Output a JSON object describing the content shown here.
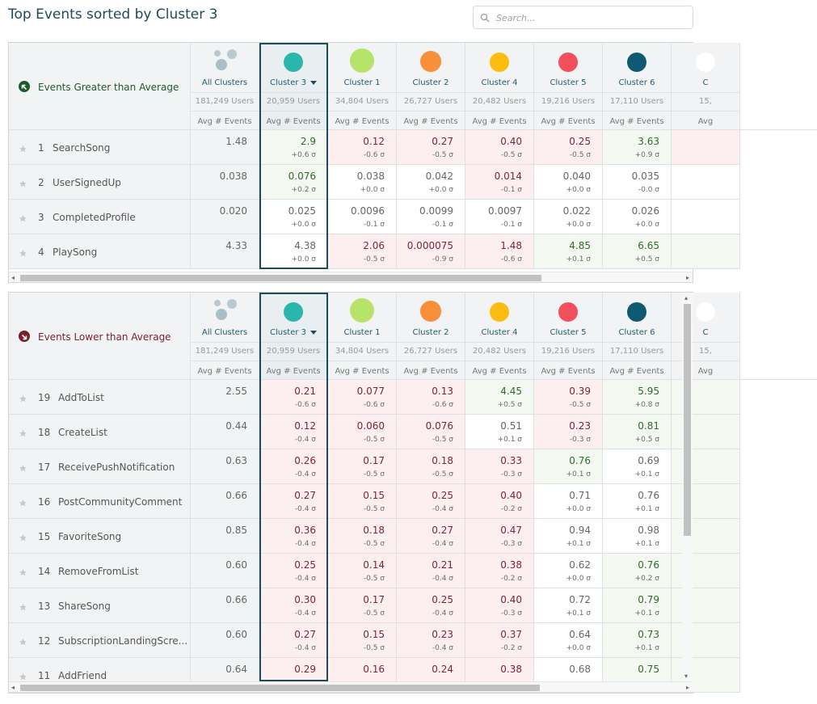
{
  "page": {
    "title": "Top Events sorted by Cluster 3"
  },
  "search": {
    "placeholder": "Search..."
  },
  "colors": {
    "accent": "#1d4b5a",
    "positive_bg": "#f3f9f0",
    "negative_bg": "#fdeff0"
  },
  "columns": [
    {
      "name": "All Clusters",
      "users": "181,249 Users",
      "metric": "Avg # Events",
      "icon": "all-clusters-icon"
    },
    {
      "name": "Cluster 3",
      "users": "20,959 Users",
      "metric": "Avg # Events",
      "color": "#2ab5ad",
      "selected": true
    },
    {
      "name": "Cluster 1",
      "users": "34,804 Users",
      "metric": "Avg # Events",
      "color": "#b6e36a"
    },
    {
      "name": "Cluster 2",
      "users": "26,727 Users",
      "metric": "Avg # Events",
      "color": "#f88f39"
    },
    {
      "name": "Cluster 4",
      "users": "20,482 Users",
      "metric": "Avg # Events",
      "color": "#fcbd10"
    },
    {
      "name": "Cluster 5",
      "users": "19,216 Users",
      "metric": "Avg # Events",
      "color": "#f04f5b"
    },
    {
      "name": "Cluster 6",
      "users": "17,110 Users",
      "metric": "Avg # Events",
      "color": "#0d5a72"
    },
    {
      "name": "C",
      "users": "15,",
      "metric": "Avg",
      "color": "#ffffff"
    }
  ],
  "greater": {
    "label": "Events Greater than Average",
    "rows": [
      {
        "rank": "1",
        "event": "SearchSong",
        "all": "1.48",
        "cells": [
          {
            "v": "2.9",
            "s": "+0.6 σ",
            "t": "pos"
          },
          {
            "v": "0.12",
            "s": "-0.6 σ",
            "t": "neg"
          },
          {
            "v": "0.27",
            "s": "-0.5 σ",
            "t": "neg"
          },
          {
            "v": "0.40",
            "s": "-0.5 σ",
            "t": "neg"
          },
          {
            "v": "0.25",
            "s": "-0.5 σ",
            "t": "neg"
          },
          {
            "v": "3.63",
            "s": "+0.9 σ",
            "t": "pos"
          },
          {
            "v": "",
            "s": "",
            "t": "neg"
          }
        ]
      },
      {
        "rank": "2",
        "event": "UserSignedUp",
        "all": "0.038",
        "cells": [
          {
            "v": "0.076",
            "s": "+0.2 σ",
            "t": "pos"
          },
          {
            "v": "0.038",
            "s": "+0.0 σ",
            "t": "neu"
          },
          {
            "v": "0.042",
            "s": "+0.0 σ",
            "t": "neu"
          },
          {
            "v": "0.014",
            "s": "-0.1 σ",
            "t": "neg"
          },
          {
            "v": "0.040",
            "s": "+0.0 σ",
            "t": "neu"
          },
          {
            "v": "0.035",
            "s": "-0.0 σ",
            "t": "neu"
          },
          {
            "v": "",
            "s": "",
            "t": "neu"
          }
        ]
      },
      {
        "rank": "3",
        "event": "CompletedProfile",
        "all": "0.020",
        "cells": [
          {
            "v": "0.025",
            "s": "+0.0 σ",
            "t": "neu"
          },
          {
            "v": "0.0096",
            "s": "-0.1 σ",
            "t": "neu"
          },
          {
            "v": "0.0099",
            "s": "-0.1 σ",
            "t": "neu"
          },
          {
            "v": "0.0097",
            "s": "-0.1 σ",
            "t": "neu"
          },
          {
            "v": "0.022",
            "s": "+0.0 σ",
            "t": "neu"
          },
          {
            "v": "0.026",
            "s": "+0.0 σ",
            "t": "neu"
          },
          {
            "v": "",
            "s": "",
            "t": "neu"
          }
        ]
      },
      {
        "rank": "4",
        "event": "PlaySong",
        "all": "4.33",
        "cells": [
          {
            "v": "4.38",
            "s": "+0.0 σ",
            "t": "neu"
          },
          {
            "v": "2.06",
            "s": "-0.5 σ",
            "t": "neg"
          },
          {
            "v": "0.000075",
            "s": "-0.9 σ",
            "t": "neg"
          },
          {
            "v": "1.48",
            "s": "-0.6 σ",
            "t": "neg"
          },
          {
            "v": "4.85",
            "s": "+0.1 σ",
            "t": "pos"
          },
          {
            "v": "6.65",
            "s": "+0.5 σ",
            "t": "pos"
          },
          {
            "v": "",
            "s": "",
            "t": "pos"
          }
        ]
      }
    ]
  },
  "lower": {
    "label": "Events Lower than Average",
    "rows": [
      {
        "rank": "19",
        "event": "AddToList",
        "all": "2.55",
        "cells": [
          {
            "v": "0.21",
            "s": "-0.6 σ",
            "t": "neg"
          },
          {
            "v": "0.077",
            "s": "-0.6 σ",
            "t": "neg"
          },
          {
            "v": "0.13",
            "s": "-0.6 σ",
            "t": "neg"
          },
          {
            "v": "4.45",
            "s": "+0.5 σ",
            "t": "pos"
          },
          {
            "v": "0.39",
            "s": "-0.5 σ",
            "t": "neg"
          },
          {
            "v": "5.95",
            "s": "+0.8 σ",
            "t": "pos"
          },
          {
            "v": "",
            "s": "",
            "t": "pos"
          }
        ]
      },
      {
        "rank": "18",
        "event": "CreateList",
        "all": "0.44",
        "cells": [
          {
            "v": "0.12",
            "s": "-0.4 σ",
            "t": "neg"
          },
          {
            "v": "0.060",
            "s": "-0.5 σ",
            "t": "neg"
          },
          {
            "v": "0.076",
            "s": "-0.5 σ",
            "t": "neg"
          },
          {
            "v": "0.51",
            "s": "+0.1 σ",
            "t": "neu"
          },
          {
            "v": "0.23",
            "s": "-0.3 σ",
            "t": "neg"
          },
          {
            "v": "0.81",
            "s": "+0.5 σ",
            "t": "pos"
          },
          {
            "v": "",
            "s": "",
            "t": "pos"
          }
        ]
      },
      {
        "rank": "17",
        "event": "ReceivePushNotification",
        "all": "0.63",
        "cells": [
          {
            "v": "0.26",
            "s": "-0.4 σ",
            "t": "neg"
          },
          {
            "v": "0.17",
            "s": "-0.5 σ",
            "t": "neg"
          },
          {
            "v": "0.18",
            "s": "-0.5 σ",
            "t": "neg"
          },
          {
            "v": "0.33",
            "s": "-0.3 σ",
            "t": "neg"
          },
          {
            "v": "0.76",
            "s": "+0.1 σ",
            "t": "pos"
          },
          {
            "v": "0.69",
            "s": "+0.1 σ",
            "t": "neu"
          },
          {
            "v": "",
            "s": "",
            "t": "pos"
          }
        ]
      },
      {
        "rank": "16",
        "event": "PostCommunityComment",
        "all": "0.66",
        "cells": [
          {
            "v": "0.27",
            "s": "-0.4 σ",
            "t": "neg"
          },
          {
            "v": "0.15",
            "s": "-0.5 σ",
            "t": "neg"
          },
          {
            "v": "0.25",
            "s": "-0.4 σ",
            "t": "neg"
          },
          {
            "v": "0.40",
            "s": "-0.2 σ",
            "t": "neg"
          },
          {
            "v": "0.71",
            "s": "+0.0 σ",
            "t": "neu"
          },
          {
            "v": "0.76",
            "s": "+0.1 σ",
            "t": "neu"
          },
          {
            "v": "",
            "s": "",
            "t": "pos"
          }
        ]
      },
      {
        "rank": "15",
        "event": "FavoriteSong",
        "all": "0.85",
        "cells": [
          {
            "v": "0.36",
            "s": "-0.4 σ",
            "t": "neg"
          },
          {
            "v": "0.18",
            "s": "-0.5 σ",
            "t": "neg"
          },
          {
            "v": "0.27",
            "s": "-0.4 σ",
            "t": "neg"
          },
          {
            "v": "0.47",
            "s": "-0.3 σ",
            "t": "neg"
          },
          {
            "v": "0.94",
            "s": "+0.1 σ",
            "t": "neu"
          },
          {
            "v": "0.98",
            "s": "+0.1 σ",
            "t": "neu"
          },
          {
            "v": "",
            "s": "",
            "t": "pos"
          }
        ]
      },
      {
        "rank": "14",
        "event": "RemoveFromList",
        "all": "0.60",
        "cells": [
          {
            "v": "0.25",
            "s": "-0.4 σ",
            "t": "neg"
          },
          {
            "v": "0.14",
            "s": "-0.5 σ",
            "t": "neg"
          },
          {
            "v": "0.21",
            "s": "-0.4 σ",
            "t": "neg"
          },
          {
            "v": "0.38",
            "s": "-0.2 σ",
            "t": "neg"
          },
          {
            "v": "0.62",
            "s": "+0.0 σ",
            "t": "neu"
          },
          {
            "v": "0.76",
            "s": "+0.2 σ",
            "t": "pos"
          },
          {
            "v": "",
            "s": "",
            "t": "pos"
          }
        ]
      },
      {
        "rank": "13",
        "event": "ShareSong",
        "all": "0.66",
        "cells": [
          {
            "v": "0.30",
            "s": "-0.4 σ",
            "t": "neg"
          },
          {
            "v": "0.17",
            "s": "-0.5 σ",
            "t": "neg"
          },
          {
            "v": "0.25",
            "s": "-0.4 σ",
            "t": "neg"
          },
          {
            "v": "0.40",
            "s": "-0.3 σ",
            "t": "neg"
          },
          {
            "v": "0.72",
            "s": "+0.1 σ",
            "t": "neu"
          },
          {
            "v": "0.79",
            "s": "+0.1 σ",
            "t": "pos"
          },
          {
            "v": "",
            "s": "",
            "t": "pos"
          }
        ]
      },
      {
        "rank": "12",
        "event": "SubscriptionLandingScre...",
        "all": "0.60",
        "cells": [
          {
            "v": "0.27",
            "s": "-0.4 σ",
            "t": "neg"
          },
          {
            "v": "0.15",
            "s": "-0.5 σ",
            "t": "neg"
          },
          {
            "v": "0.23",
            "s": "-0.4 σ",
            "t": "neg"
          },
          {
            "v": "0.37",
            "s": "-0.2 σ",
            "t": "neg"
          },
          {
            "v": "0.64",
            "s": "+0.0 σ",
            "t": "neu"
          },
          {
            "v": "0.73",
            "s": "+0.1 σ",
            "t": "pos"
          },
          {
            "v": "",
            "s": "",
            "t": "pos"
          }
        ]
      },
      {
        "rank": "11",
        "event": "AddFriend",
        "all": "0.64",
        "cells": [
          {
            "v": "0.29",
            "s": "",
            "t": "neg"
          },
          {
            "v": "0.16",
            "s": "",
            "t": "neg"
          },
          {
            "v": "0.24",
            "s": "",
            "t": "neg"
          },
          {
            "v": "0.38",
            "s": "",
            "t": "neg"
          },
          {
            "v": "0.68",
            "s": "",
            "t": "neu"
          },
          {
            "v": "0.75",
            "s": "",
            "t": "pos"
          },
          {
            "v": "",
            "s": "",
            "t": "pos"
          }
        ]
      }
    ]
  }
}
